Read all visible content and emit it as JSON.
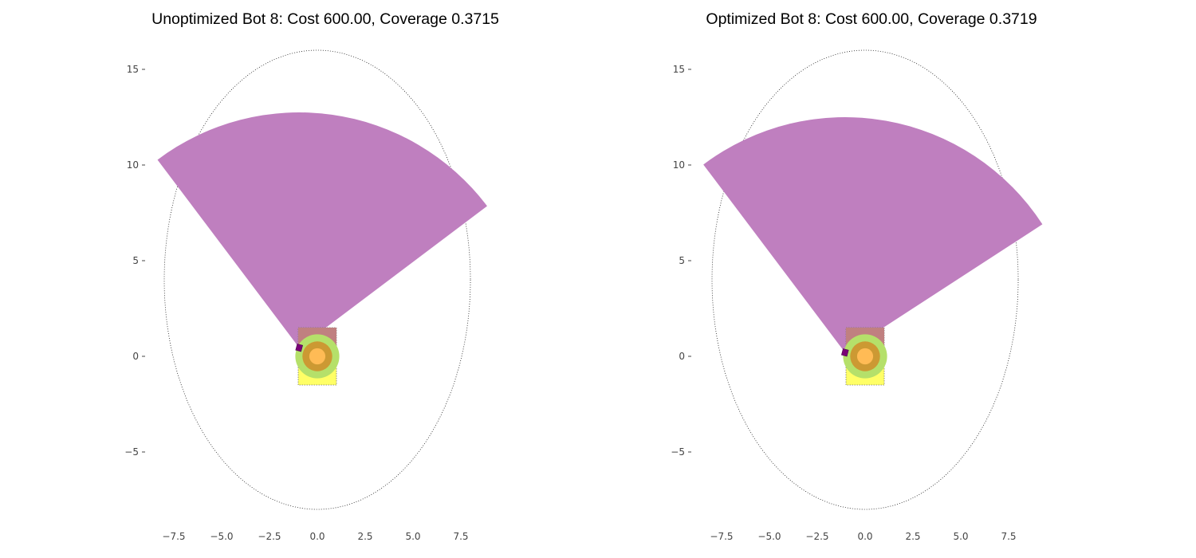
{
  "chart_data": [
    {
      "type": "scatter",
      "title": "Unoptimized Bot 8: Cost 600.00, Coverage 0.3715",
      "xlabel": "",
      "ylabel": "",
      "xlim": [
        -8.6,
        9.2
      ],
      "ylim": [
        -8.8,
        16.2
      ],
      "xticks": [
        -7.5,
        -5.0,
        -2.5,
        0.0,
        2.5,
        5.0,
        7.5
      ],
      "xtick_labels": [
        "−7.5",
        "−5.0",
        "−2.5",
        "0.0",
        "2.5",
        "5.0",
        "7.5"
      ],
      "yticks": [
        -5,
        0,
        5,
        10,
        15
      ],
      "ytick_labels": [
        "−5",
        "0",
        "5",
        "10",
        "15"
      ],
      "grid": false,
      "ellipse": {
        "center": [
          0,
          4
        ],
        "rx": 8,
        "ry": 12,
        "style": "dotted"
      },
      "sensor_fov": {
        "apex": [
          -0.95,
          0.45
        ],
        "radius": 12.3,
        "start_deg": 37,
        "end_deg": 127,
        "color": "#bf7fbf"
      },
      "sensor_marker": {
        "x": -0.95,
        "y": 0.45,
        "color": "#7a0077"
      },
      "body_rect": {
        "x": [
          -1.0,
          1.0
        ],
        "y": [
          -1.5,
          1.5
        ],
        "color": "#ffff66"
      },
      "top_rect": {
        "x": [
          -1.0,
          1.0
        ],
        "y": [
          0.5,
          1.5
        ],
        "color": "#c08080"
      },
      "coverage_circles": [
        {
          "center": [
            0,
            0
          ],
          "radius": 1.15,
          "color": "#b5e06a"
        },
        {
          "center": [
            0,
            0
          ],
          "radius": 0.78,
          "color": "#cc9933"
        },
        {
          "center": [
            0,
            0
          ],
          "radius": 0.42,
          "color": "#ffbb55"
        }
      ]
    },
    {
      "type": "scatter",
      "title": "Optimized Bot 8: Cost 600.00, Coverage 0.3719",
      "xlabel": "",
      "ylabel": "",
      "xlim": [
        -8.6,
        9.2
      ],
      "ylim": [
        -8.8,
        16.2
      ],
      "xticks": [
        -7.5,
        -5.0,
        -2.5,
        0.0,
        2.5,
        5.0,
        7.5
      ],
      "xtick_labels": [
        "−7.5",
        "−5.0",
        "−2.5",
        "0.0",
        "2.5",
        "5.0",
        "7.5"
      ],
      "yticks": [
        -5,
        0,
        5,
        10,
        15
      ],
      "ytick_labels": [
        "−5",
        "0",
        "5",
        "10",
        "15"
      ],
      "grid": false,
      "ellipse": {
        "center": [
          0,
          4
        ],
        "rx": 8,
        "ry": 12,
        "style": "dotted"
      },
      "sensor_fov": {
        "apex": [
          -1.05,
          0.2
        ],
        "radius": 12.3,
        "start_deg": 33,
        "end_deg": 127,
        "color": "#bf7fbf"
      },
      "sensor_marker": {
        "x": -1.05,
        "y": 0.2,
        "color": "#7a0077"
      },
      "body_rect": {
        "x": [
          -1.0,
          1.0
        ],
        "y": [
          -1.5,
          1.5
        ],
        "color": "#ffff66"
      },
      "top_rect": {
        "x": [
          -1.0,
          1.0
        ],
        "y": [
          0.5,
          1.5
        ],
        "color": "#c08080"
      },
      "coverage_circles": [
        {
          "center": [
            0,
            0
          ],
          "radius": 1.15,
          "color": "#b5e06a"
        },
        {
          "center": [
            0,
            0
          ],
          "radius": 0.78,
          "color": "#cc9933"
        },
        {
          "center": [
            0,
            0
          ],
          "radius": 0.42,
          "color": "#ffbb55"
        }
      ]
    }
  ]
}
